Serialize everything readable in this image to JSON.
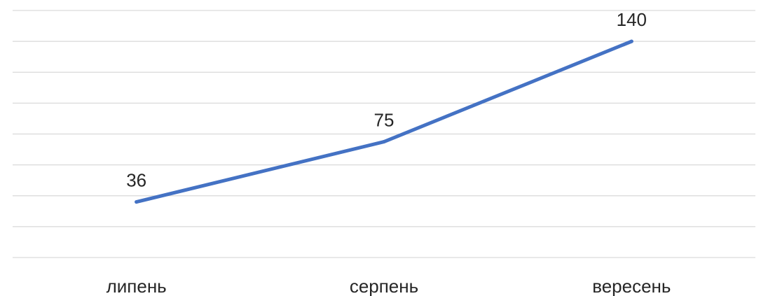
{
  "chart_data": {
    "type": "line",
    "categories": [
      "липень",
      "серпень",
      "вересень"
    ],
    "series": [
      {
        "values": [
          36,
          75,
          140
        ],
        "color": "#4472c4"
      }
    ],
    "ylim": [
      0,
      160
    ],
    "grid": true,
    "legend": "none",
    "data_labels": true,
    "axes_labels_shown": false
  }
}
